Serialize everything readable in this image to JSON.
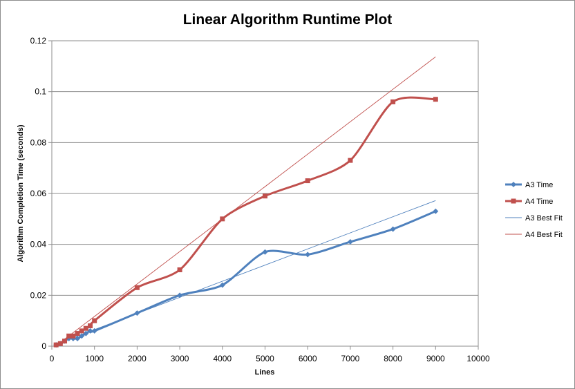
{
  "chart_data": {
    "type": "line",
    "title": "Linear Algorithm Runtime Plot",
    "xlabel": "Lines",
    "ylabel": "Algorithm Completion Time (seconds)",
    "xlim": [
      0,
      10000
    ],
    "ylim": [
      0,
      0.12
    ],
    "x_ticks": [
      "0",
      "1000",
      "2000",
      "3000",
      "4000",
      "5000",
      "6000",
      "7000",
      "8000",
      "9000",
      "10000"
    ],
    "y_ticks": [
      "0",
      "0.02",
      "0.04",
      "0.06",
      "0.08",
      "0.1",
      "0.12"
    ],
    "grid": "horizontal",
    "legend_position": "right",
    "series": [
      {
        "name": "A3 Time",
        "color": "#4f81bd",
        "marker": "diamond",
        "smooth": true,
        "x": [
          100,
          200,
          300,
          400,
          500,
          600,
          700,
          800,
          900,
          1000,
          2000,
          3000,
          4000,
          5000,
          6000,
          7000,
          8000,
          9000
        ],
        "y": [
          0.0005,
          0.001,
          0.002,
          0.003,
          0.003,
          0.003,
          0.004,
          0.005,
          0.006,
          0.006,
          0.013,
          0.02,
          0.024,
          0.037,
          0.036,
          0.041,
          0.046,
          0.053
        ]
      },
      {
        "name": "A4 Time",
        "color": "#c0504d",
        "marker": "square",
        "smooth": true,
        "x": [
          100,
          200,
          300,
          400,
          500,
          600,
          700,
          800,
          900,
          1000,
          2000,
          3000,
          4000,
          5000,
          6000,
          7000,
          8000,
          9000
        ],
        "y": [
          0.0005,
          0.001,
          0.002,
          0.004,
          0.004,
          0.005,
          0.006,
          0.007,
          0.008,
          0.01,
          0.023,
          0.03,
          0.05,
          0.059,
          0.065,
          0.073,
          0.096,
          0.097
        ]
      },
      {
        "name": "A3 Best Fit",
        "color": "#4f81bd",
        "marker": "none",
        "trendline": true,
        "x": [
          100,
          9000
        ],
        "y": [
          0.0008,
          0.0572
        ]
      },
      {
        "name": "A4 Best Fit",
        "color": "#c0504d",
        "marker": "none",
        "trendline": true,
        "x": [
          100,
          9000
        ],
        "y": [
          0.0002,
          0.1137
        ]
      }
    ]
  }
}
